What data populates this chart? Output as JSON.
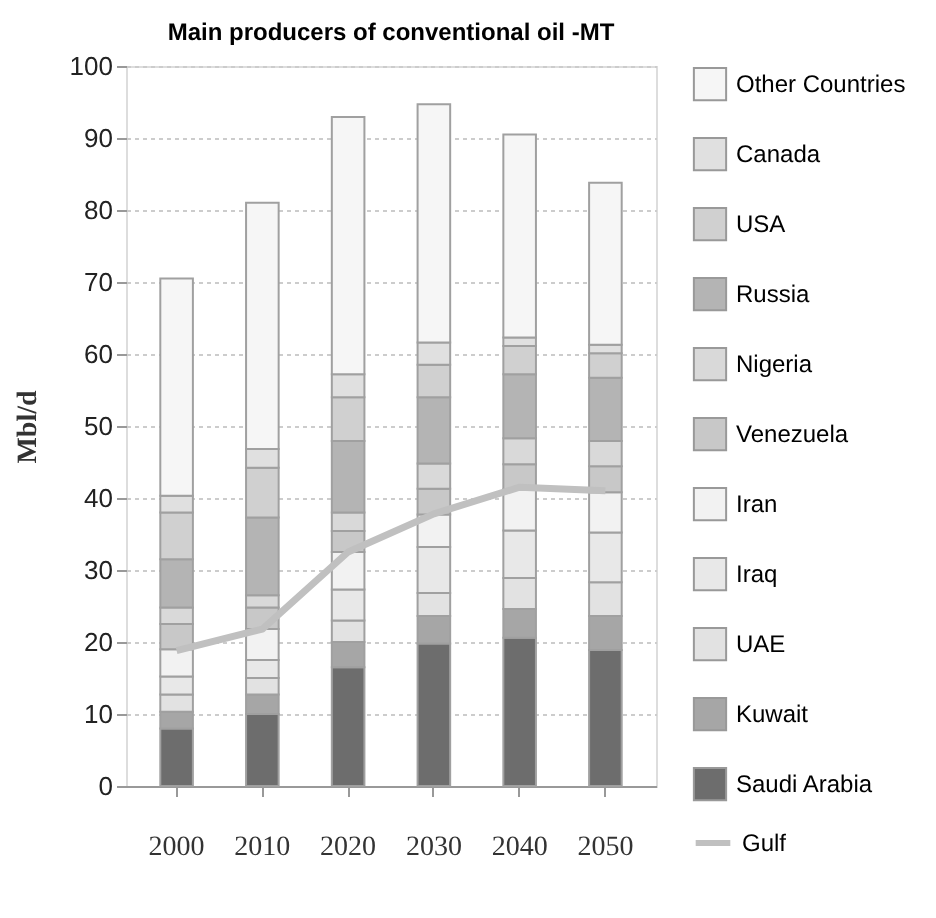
{
  "chart_data": {
    "type": "bar",
    "title": "Main producers of conventional oil -MT",
    "ylabel": "Mbl/d",
    "categories": [
      "2000",
      "2010",
      "2020",
      "2030",
      "2040",
      "2050"
    ],
    "stacked": true,
    "ylim": [
      0,
      100
    ],
    "yticks": [
      0,
      10,
      20,
      30,
      40,
      50,
      60,
      70,
      80,
      90,
      100
    ],
    "grid": "y",
    "legend": "right",
    "series": [
      {
        "name": "Saudi Arabia",
        "color": "#6d6d6d",
        "values": [
          8,
          10,
          16.5,
          19.8,
          20.6,
          18.9
        ]
      },
      {
        "name": "Kuwait",
        "color": "#a6a6a6",
        "values": [
          2.3,
          2.7,
          3.5,
          3.8,
          4.0,
          4.7
        ]
      },
      {
        "name": "UAE",
        "color": "#e2e2e2",
        "values": [
          2.4,
          2.3,
          3.0,
          3.2,
          4.3,
          4.7
        ]
      },
      {
        "name": "Iraq",
        "color": "#e8e8e8",
        "values": [
          2.5,
          2.5,
          4.3,
          6.4,
          6.6,
          6.9
        ]
      },
      {
        "name": "Iran",
        "color": "#f2f2f2",
        "values": [
          3.8,
          4.3,
          5.2,
          4.5,
          5.7,
          5.6
        ]
      },
      {
        "name": "Venezuela",
        "color": "#c8c8c8",
        "values": [
          3.5,
          3.0,
          2.9,
          3.6,
          3.5,
          3.6
        ]
      },
      {
        "name": "Nigeria",
        "color": "#d9d9d9",
        "values": [
          2.3,
          1.7,
          2.6,
          3.5,
          3.6,
          3.5
        ]
      },
      {
        "name": "Russia",
        "color": "#b4b4b4",
        "values": [
          6.7,
          10.8,
          9.9,
          9.2,
          8.9,
          8.8
        ]
      },
      {
        "name": "USA",
        "color": "#d0d0d0",
        "values": [
          6.5,
          6.9,
          6.1,
          4.5,
          3.9,
          3.4
        ]
      },
      {
        "name": "Canada",
        "color": "#e0e0e0",
        "values": [
          2.3,
          2.6,
          3.2,
          3.1,
          1.2,
          1.2
        ]
      },
      {
        "name": "Other Countries",
        "color": "#f6f6f6",
        "values": [
          30.2,
          34.2,
          35.7,
          33.1,
          28.2,
          22.5
        ]
      },
      {
        "name": "Gulf",
        "type": "line",
        "color": "#c0c0c0",
        "values": [
          18.8,
          21.8,
          32.5,
          37.8,
          41.5,
          41
        ]
      }
    ]
  }
}
